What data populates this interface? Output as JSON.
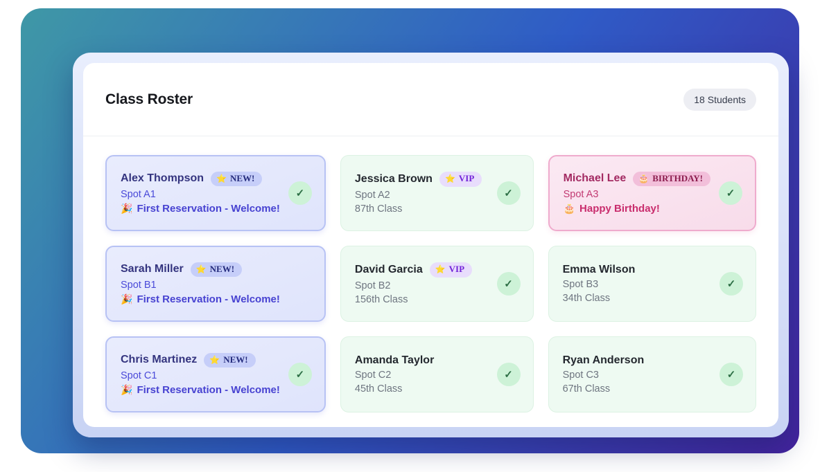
{
  "header": {
    "title": "Class Roster",
    "student_count": "18 Students"
  },
  "colors": {
    "gradient_start": "#3f98a6",
    "gradient_mid": "#2f5bc6",
    "gradient_end": "#44239d",
    "new_accent": "#4742d1",
    "vip_accent": "#7223d8",
    "birthday_accent": "#c92d6d",
    "checkin_green": "#2d6f45"
  },
  "roster": {
    "cards": [
      {
        "name": "Alex Thompson",
        "spot": "Spot A1",
        "variant": "new",
        "badge": {
          "type": "new",
          "label": "NEW!",
          "icon": "⭐",
          "icon_name": "star-icon"
        },
        "note": {
          "icon": "🎉",
          "icon_name": "party-popper-icon",
          "text": "First Reservation - Welcome!"
        },
        "checked_in": true
      },
      {
        "name": "Jessica Brown",
        "spot": "Spot A2",
        "variant": "green",
        "badge": {
          "type": "vip",
          "label": "VIP",
          "icon": "⭐",
          "icon_name": "star-icon"
        },
        "detail": "87th Class",
        "checked_in": true
      },
      {
        "name": "Michael Lee",
        "spot": "Spot A3",
        "variant": "birthday",
        "badge": {
          "type": "birthday",
          "label": "BIRTHDAY!",
          "icon": "🎂",
          "icon_name": "cake-icon"
        },
        "note": {
          "icon": "🎂",
          "icon_name": "cake-icon",
          "text": "Happy Birthday!"
        },
        "checked_in": true
      },
      {
        "name": "Sarah Miller",
        "spot": "Spot B1",
        "variant": "new",
        "badge": {
          "type": "new",
          "label": "NEW!",
          "icon": "⭐",
          "icon_name": "star-icon"
        },
        "note": {
          "icon": "🎉",
          "icon_name": "party-popper-icon",
          "text": "First Reservation - Welcome!"
        },
        "checked_in": false
      },
      {
        "name": "David Garcia",
        "spot": "Spot B2",
        "variant": "green",
        "badge": {
          "type": "vip",
          "label": "VIP",
          "icon": "⭐",
          "icon_name": "star-icon"
        },
        "detail": "156th Class",
        "checked_in": true
      },
      {
        "name": "Emma Wilson",
        "spot": "Spot B3",
        "variant": "green",
        "badge": null,
        "detail": "34th Class",
        "checked_in": true
      },
      {
        "name": "Chris Martinez",
        "spot": "Spot C1",
        "variant": "new",
        "badge": {
          "type": "new",
          "label": "NEW!",
          "icon": "⭐",
          "icon_name": "star-icon"
        },
        "note": {
          "icon": "🎉",
          "icon_name": "party-popper-icon",
          "text": "First Reservation - Welcome!"
        },
        "checked_in": true
      },
      {
        "name": "Amanda Taylor",
        "spot": "Spot C2",
        "variant": "green",
        "badge": null,
        "detail": "45th Class",
        "checked_in": true
      },
      {
        "name": "Ryan Anderson",
        "spot": "Spot C3",
        "variant": "green",
        "badge": null,
        "detail": "67th Class",
        "checked_in": true
      }
    ]
  }
}
